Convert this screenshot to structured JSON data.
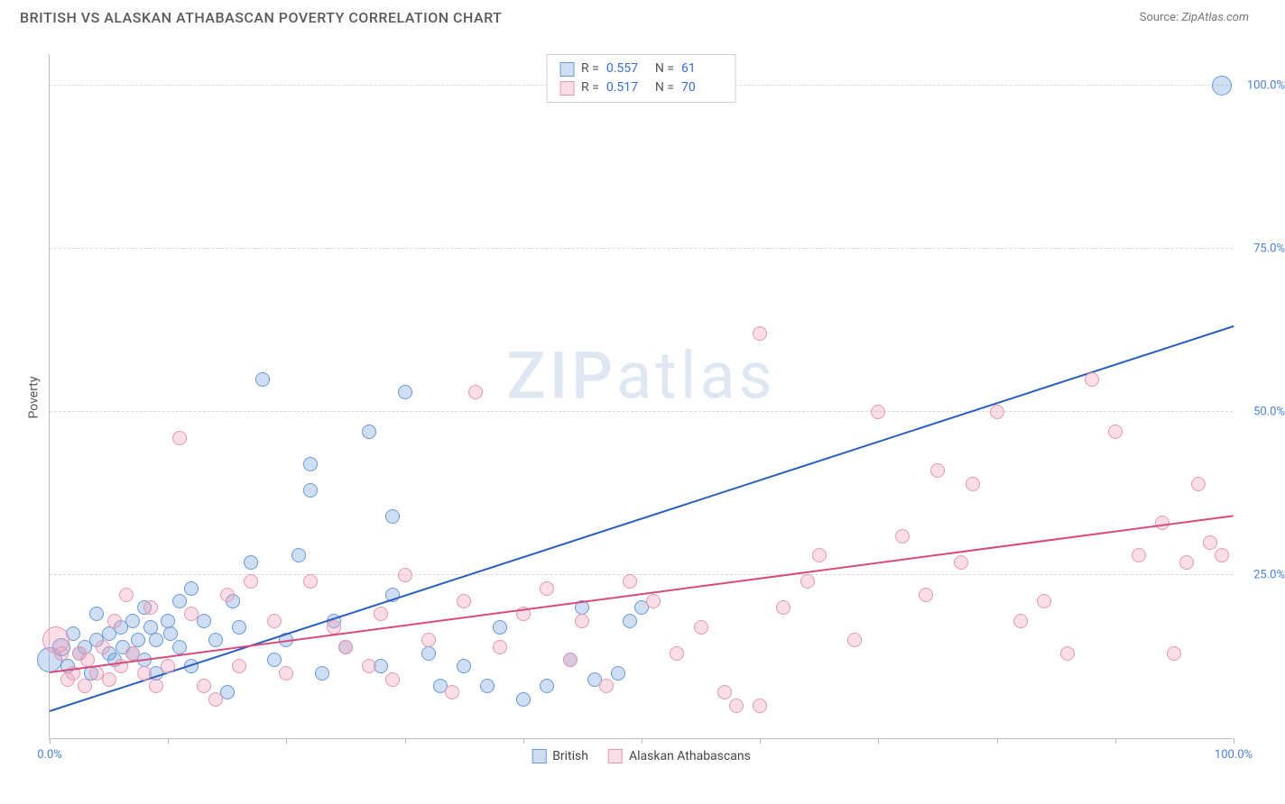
{
  "title": "BRITISH VS ALASKAN ATHABASCAN POVERTY CORRELATION CHART",
  "source_label": "Source:",
  "source_value": "ZipAtlas.com",
  "ylabel": "Poverty",
  "watermark": "ZIPatlas",
  "chart": {
    "type": "scatter",
    "xlim": [
      0,
      100
    ],
    "ylim": [
      0,
      105
    ],
    "yticks": [
      25,
      50,
      75,
      100
    ],
    "ytick_labels": [
      "25.0%",
      "50.0%",
      "75.0%",
      "100.0%"
    ],
    "xticks": [
      0,
      10,
      20,
      30,
      40,
      50,
      60,
      70,
      80,
      90,
      100
    ],
    "xtick_labels": {
      "0": "0.0%",
      "100": "100.0%"
    },
    "grid_color": "#d8d8d8",
    "axis_color": "#bbbbbb",
    "background_color": "#ffffff",
    "label_color": "#4a7fd6",
    "marker_radius": 8,
    "marker_radius_large": 12,
    "series": [
      {
        "name": "British",
        "fill": "rgba(120,160,220,0.35)",
        "stroke": "#6a98d8",
        "trend_color": "#2a5fc0",
        "trend": {
          "x1": 0,
          "y1": 4,
          "x2": 100,
          "y2": 63
        },
        "R": "0.557",
        "N": "61",
        "points": [
          [
            0,
            12,
            14
          ],
          [
            1,
            14,
            10
          ],
          [
            1.5,
            11
          ],
          [
            2,
            16
          ],
          [
            2.5,
            13
          ],
          [
            3,
            14
          ],
          [
            3.5,
            10
          ],
          [
            4,
            15
          ],
          [
            4,
            19
          ],
          [
            5,
            16
          ],
          [
            5,
            13
          ],
          [
            5.5,
            12
          ],
          [
            6,
            17
          ],
          [
            6.2,
            14
          ],
          [
            7,
            13
          ],
          [
            7,
            18
          ],
          [
            7.5,
            15
          ],
          [
            8,
            12
          ],
          [
            8,
            20
          ],
          [
            8.5,
            17
          ],
          [
            9,
            10
          ],
          [
            9,
            15
          ],
          [
            10,
            18
          ],
          [
            10.2,
            16
          ],
          [
            11,
            14
          ],
          [
            11,
            21
          ],
          [
            12,
            23
          ],
          [
            12,
            11
          ],
          [
            13,
            18
          ],
          [
            14,
            15
          ],
          [
            15,
            7
          ],
          [
            15.5,
            21
          ],
          [
            16,
            17
          ],
          [
            17,
            27
          ],
          [
            18,
            55
          ],
          [
            19,
            12
          ],
          [
            20,
            15
          ],
          [
            21,
            28
          ],
          [
            22,
            42
          ],
          [
            22,
            38
          ],
          [
            23,
            10
          ],
          [
            24,
            18
          ],
          [
            25,
            14
          ],
          [
            27,
            47
          ],
          [
            28,
            11
          ],
          [
            29,
            22
          ],
          [
            29,
            34
          ],
          [
            30,
            53
          ],
          [
            32,
            13
          ],
          [
            33,
            8
          ],
          [
            35,
            11
          ],
          [
            37,
            8
          ],
          [
            38,
            17
          ],
          [
            40,
            6
          ],
          [
            42,
            8
          ],
          [
            44,
            12
          ],
          [
            45,
            20
          ],
          [
            46,
            9
          ],
          [
            48,
            10
          ],
          [
            49,
            18
          ],
          [
            50,
            20
          ],
          [
            99,
            100,
            11
          ]
        ]
      },
      {
        "name": "Alaskan Athabascans",
        "fill": "rgba(242,160,185,0.35)",
        "stroke": "#e398b0",
        "trend_color": "#d84a7a",
        "trend": {
          "x1": 0,
          "y1": 10,
          "x2": 100,
          "y2": 34
        },
        "R": "0.517",
        "N": "70",
        "points": [
          [
            0.5,
            15,
            15
          ],
          [
            1,
            13
          ],
          [
            1.5,
            9
          ],
          [
            2,
            10
          ],
          [
            2.5,
            13
          ],
          [
            3,
            8
          ],
          [
            3.2,
            12
          ],
          [
            4,
            10
          ],
          [
            4.5,
            14
          ],
          [
            5,
            9
          ],
          [
            5.5,
            18
          ],
          [
            6,
            11
          ],
          [
            6.5,
            22
          ],
          [
            7,
            13
          ],
          [
            8,
            10
          ],
          [
            8.5,
            20
          ],
          [
            9,
            8
          ],
          [
            10,
            11
          ],
          [
            11,
            46
          ],
          [
            12,
            19
          ],
          [
            13,
            8
          ],
          [
            14,
            6
          ],
          [
            15,
            22
          ],
          [
            16,
            11
          ],
          [
            17,
            24
          ],
          [
            19,
            18
          ],
          [
            20,
            10
          ],
          [
            22,
            24
          ],
          [
            24,
            17
          ],
          [
            25,
            14
          ],
          [
            27,
            11
          ],
          [
            28,
            19
          ],
          [
            29,
            9
          ],
          [
            30,
            25
          ],
          [
            32,
            15
          ],
          [
            34,
            7
          ],
          [
            35,
            21
          ],
          [
            36,
            53
          ],
          [
            38,
            14
          ],
          [
            40,
            19
          ],
          [
            42,
            23
          ],
          [
            44,
            12
          ],
          [
            45,
            18
          ],
          [
            47,
            8
          ],
          [
            49,
            24
          ],
          [
            51,
            21
          ],
          [
            53,
            13
          ],
          [
            55,
            17
          ],
          [
            57,
            7
          ],
          [
            58,
            5
          ],
          [
            60,
            5
          ],
          [
            60,
            62
          ],
          [
            62,
            20
          ],
          [
            64,
            24
          ],
          [
            65,
            28
          ],
          [
            68,
            15
          ],
          [
            70,
            50
          ],
          [
            72,
            31
          ],
          [
            74,
            22
          ],
          [
            75,
            41
          ],
          [
            77,
            27
          ],
          [
            78,
            39
          ],
          [
            80,
            50
          ],
          [
            82,
            18
          ],
          [
            84,
            21
          ],
          [
            86,
            13
          ],
          [
            88,
            55
          ],
          [
            90,
            47
          ],
          [
            92,
            28
          ],
          [
            94,
            33
          ],
          [
            95,
            13
          ],
          [
            96,
            27
          ],
          [
            97,
            39
          ],
          [
            98,
            30
          ],
          [
            99,
            28
          ]
        ]
      }
    ]
  },
  "legend": {
    "series1_label": "British",
    "series2_label": "Alaskan Athabascans"
  }
}
